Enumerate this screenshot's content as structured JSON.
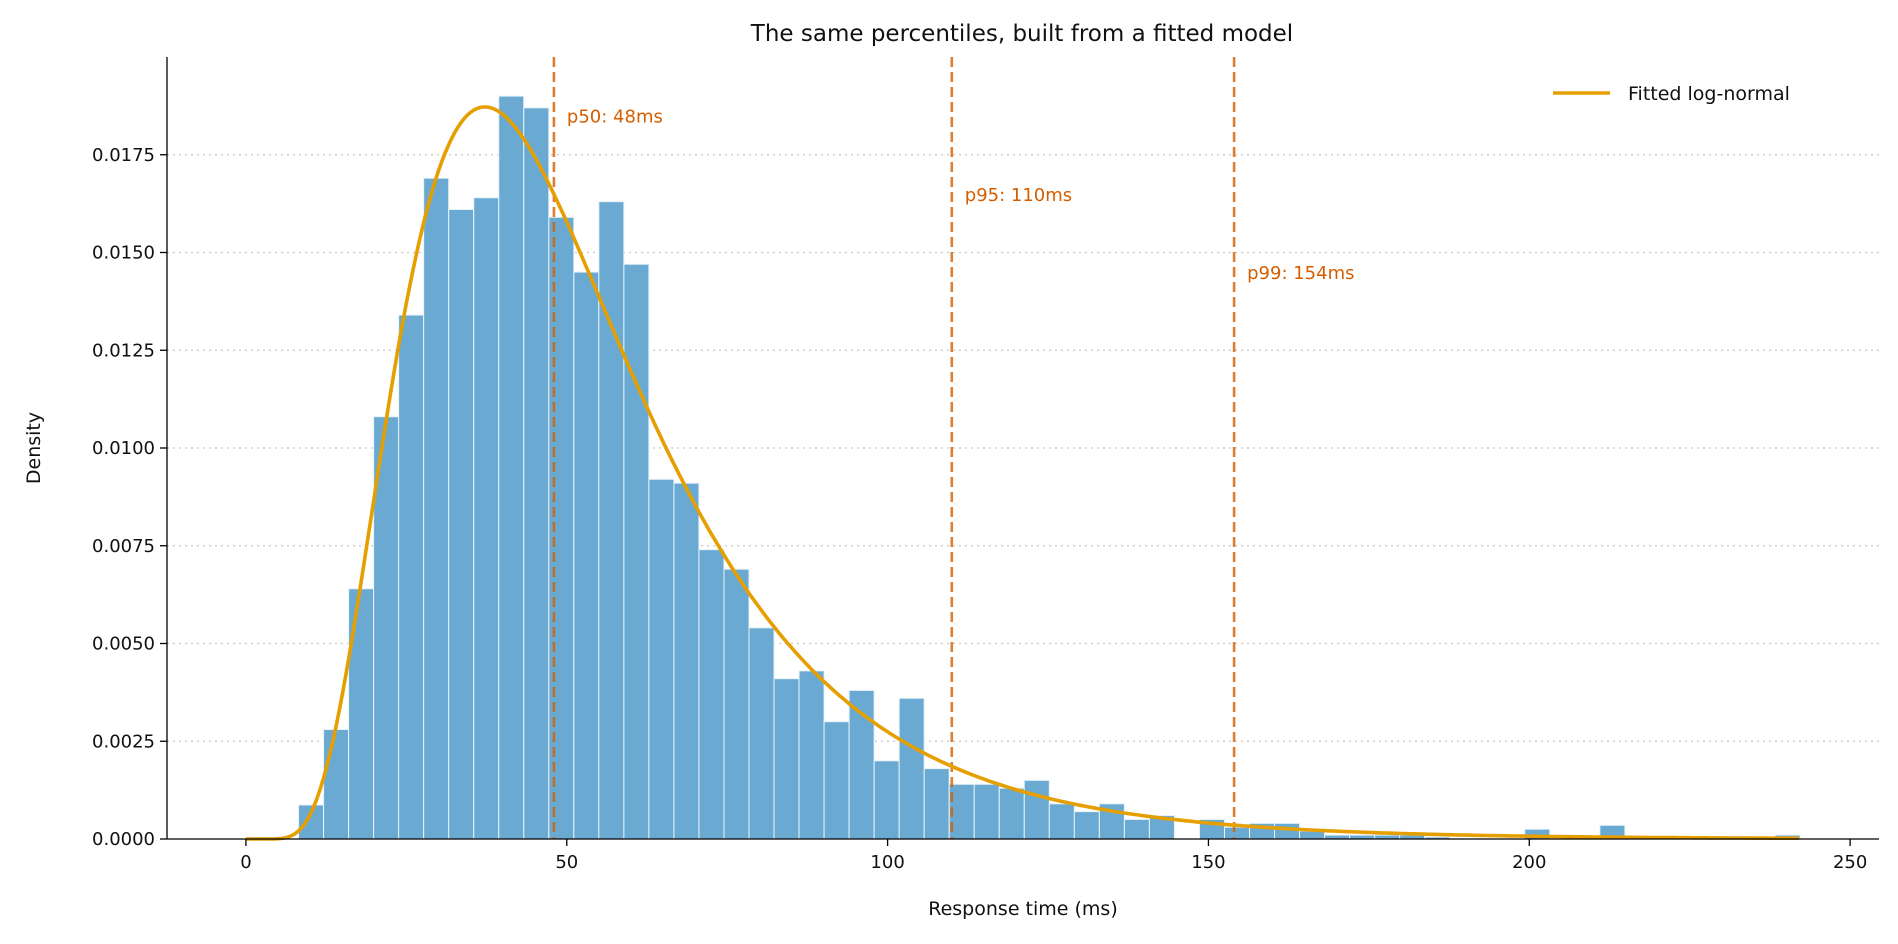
{
  "chart_data": {
    "type": "bar",
    "title": "The same percentiles, built from a fitted model",
    "xlabel": "Response time (ms)",
    "ylabel": "Density",
    "xlim": [
      -12.3,
      254.5
    ],
    "ylim": [
      0,
      0.02
    ],
    "xticks": [
      "0",
      "50",
      "100",
      "150",
      "200",
      "250"
    ],
    "yticks": [
      "0.0000",
      "0.0025",
      "0.0050",
      "0.0075",
      "0.0100",
      "0.0125",
      "0.0150",
      "0.0175"
    ],
    "grid": "y-dotted",
    "legend_position": "top-right",
    "histogram": {
      "bin_start": 8.2,
      "bin_width": 3.9,
      "values": [
        0.00087,
        0.0028,
        0.0064,
        0.0108,
        0.0134,
        0.0169,
        0.0161,
        0.0164,
        0.019,
        0.0187,
        0.0159,
        0.0145,
        0.0163,
        0.0147,
        0.0092,
        0.0091,
        0.0074,
        0.0069,
        0.0054,
        0.0041,
        0.0043,
        0.003,
        0.0038,
        0.002,
        0.0036,
        0.0018,
        0.0014,
        0.0014,
        0.0013,
        0.0015,
        0.0009,
        0.0007,
        0.0009,
        0.0005,
        0.0006,
        0,
        0.0005,
        0.0003,
        0.0004,
        0.0004,
        0.0002,
        0.0001,
        0.0001,
        0.0001,
        0.0001,
        5e-05,
        0,
        0,
        0,
        0.00025,
        0,
        0,
        0.00035,
        0,
        0,
        0,
        0,
        0,
        0,
        0.0001
      ],
      "color": "#6aaad2"
    },
    "fit": {
      "name": "Fitted log-normal",
      "median": 48,
      "sigma": 0.504,
      "color": "#E69F00"
    },
    "percentiles": [
      {
        "label": "p50: 48ms",
        "value": 48
      },
      {
        "label": "p95: 110ms",
        "value": 110
      },
      {
        "label": "p99: 154ms",
        "value": 154
      }
    ],
    "percentile_color": "#D55E00"
  }
}
